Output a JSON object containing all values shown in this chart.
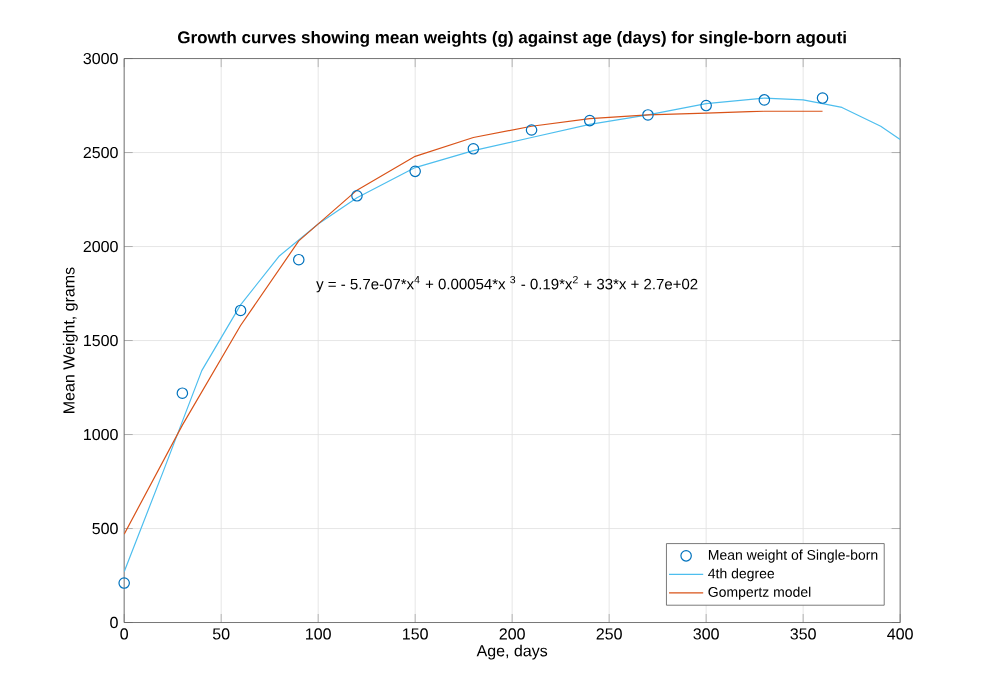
{
  "chart_data": {
    "type": "line",
    "title": "Growth curves showing mean weights (g) against age (days) for single-born agouti",
    "xlabel": "Age, days",
    "ylabel": "Mean Weight, grams",
    "xlim": [
      0,
      400
    ],
    "ylim": [
      0,
      3000
    ],
    "xticks": [
      0,
      50,
      100,
      150,
      200,
      250,
      300,
      350,
      400
    ],
    "yticks": [
      0,
      500,
      1000,
      1500,
      2000,
      2500,
      3000
    ],
    "grid": true,
    "legend": "bottom right",
    "annotations": [
      "y = - 5.7e-07*x$^{4}$ + 0.00054*x $^{3}$ - 0.19*x$^{2}$ + 33*x + 2.7e+02"
    ],
    "series": [
      {
        "name": "Mean weight of Single-born",
        "type": "scatter",
        "marker": "circle",
        "color": "#0072bd",
        "x": [
          0,
          30,
          60,
          90,
          120,
          150,
          180,
          210,
          240,
          270,
          300,
          330,
          360
        ],
        "values": [
          210,
          1220,
          1660,
          1930,
          2270,
          2400,
          2520,
          2620,
          2670,
          2700,
          2750,
          2780,
          2790
        ]
      },
      {
        "name": "4th degree",
        "color": "#4dbeee",
        "x": [
          0,
          20,
          40,
          60,
          80,
          100,
          120,
          150,
          180,
          210,
          240,
          270,
          300,
          330,
          350,
          370,
          390,
          400
        ],
        "values": [
          270,
          800,
          1340,
          1690,
          1950,
          2120,
          2260,
          2420,
          2510,
          2580,
          2650,
          2700,
          2760,
          2790,
          2780,
          2740,
          2640,
          2570
        ]
      },
      {
        "name": "Gompertz model",
        "color": "#d95319",
        "x": [
          0,
          30,
          60,
          90,
          120,
          150,
          180,
          210,
          240,
          270,
          300,
          330,
          360
        ],
        "values": [
          470,
          1050,
          1580,
          2030,
          2300,
          2480,
          2580,
          2640,
          2680,
          2700,
          2710,
          2720,
          2720
        ]
      }
    ]
  }
}
